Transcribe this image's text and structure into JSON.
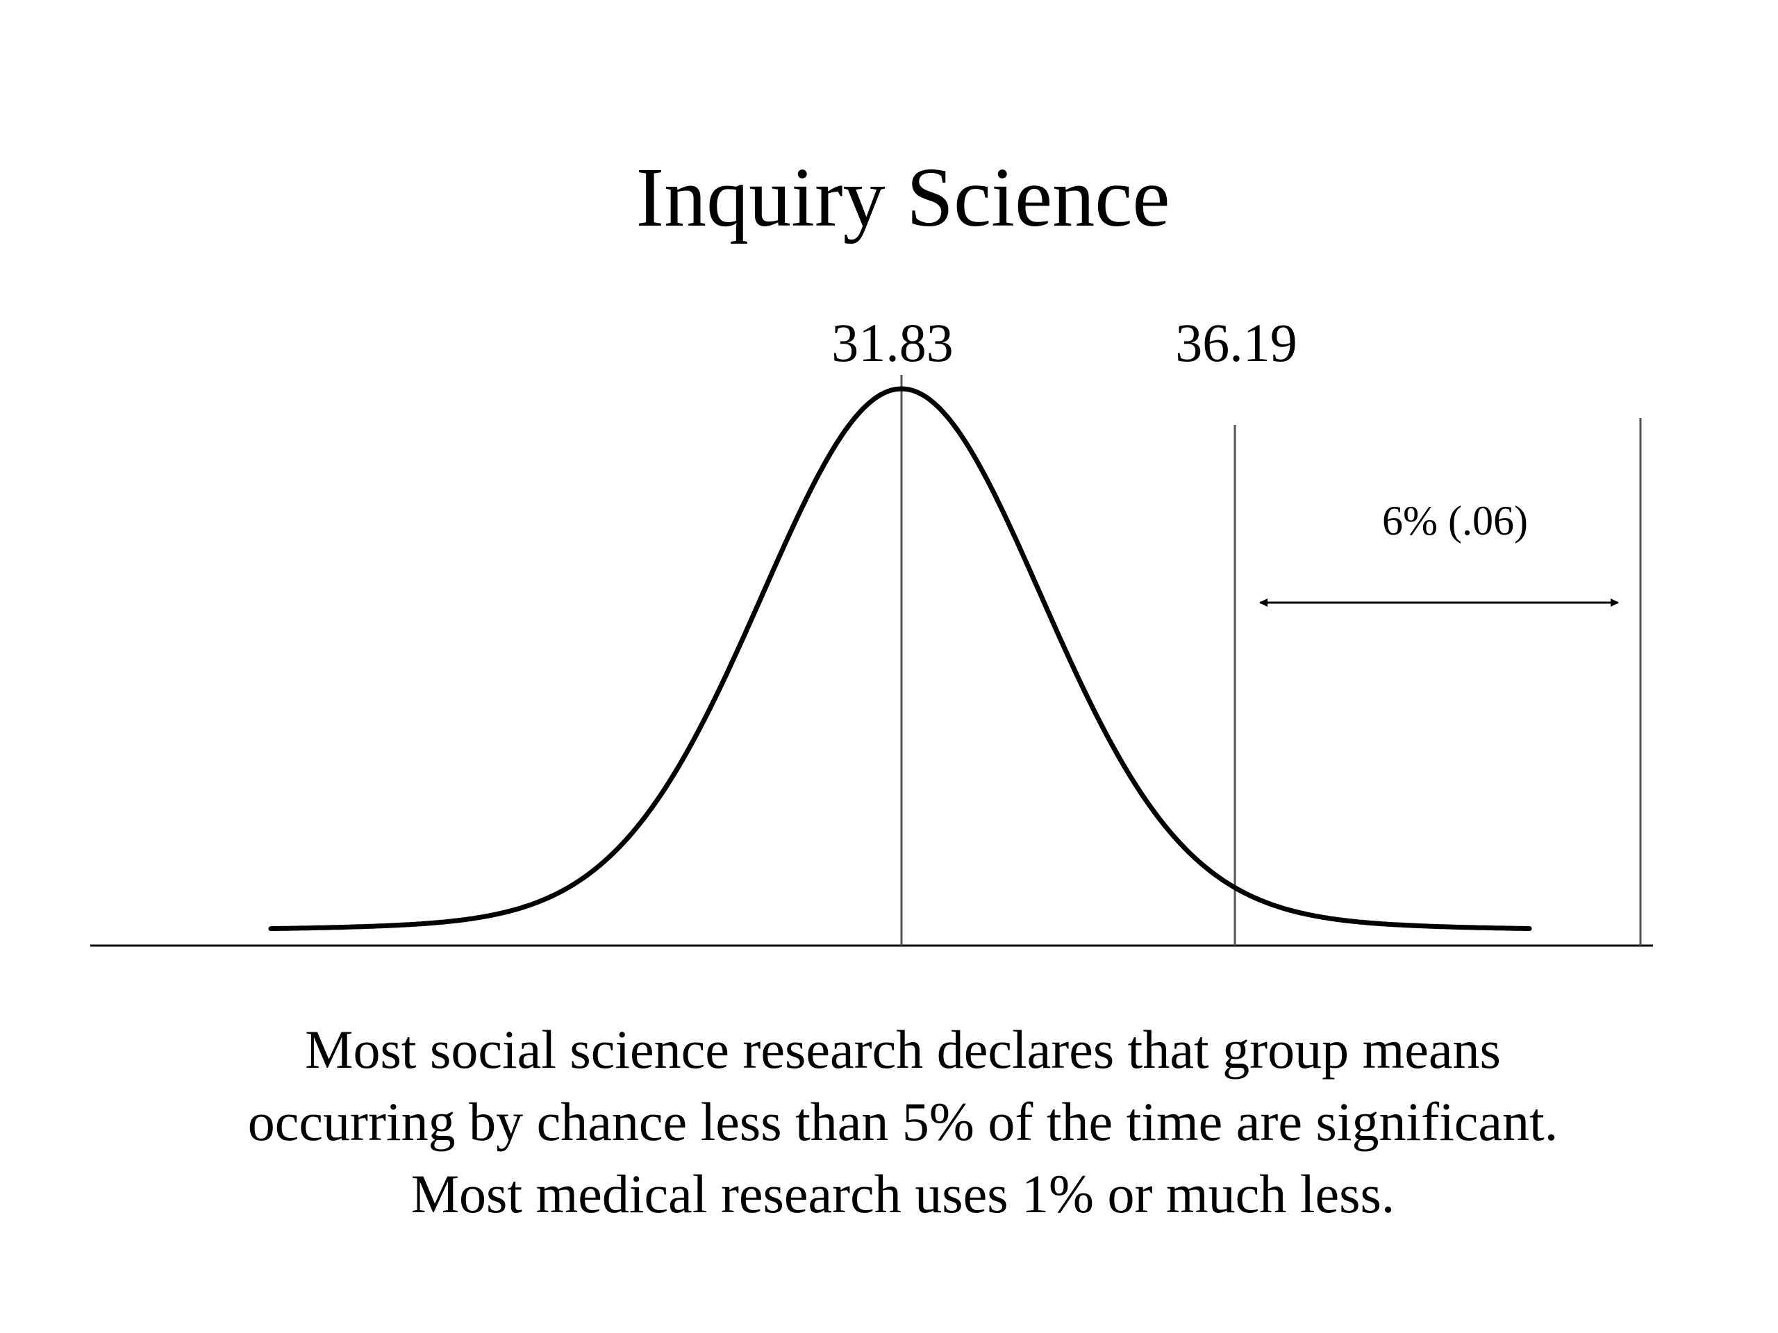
{
  "title": "Inquiry Science",
  "mean_label": "31.83",
  "cutoff_label": "36.19",
  "region_label": "6% (.06)",
  "caption": {
    "line1": "Most social science research declares that group means",
    "line2": "occurring by chance less than 5% of the time are significant.",
    "line3": "Most medical research uses 1% or much less."
  },
  "colors": {
    "text": "#000000",
    "curve": "#000000",
    "guide_lines": "#555555",
    "background": "#ffffff"
  }
}
